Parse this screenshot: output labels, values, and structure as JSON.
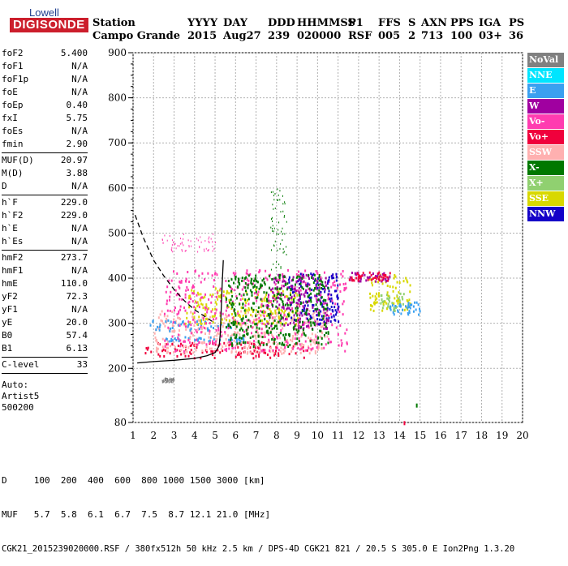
{
  "logo": {
    "line1": "Lowell",
    "line2": "DIGISONDE"
  },
  "header": {
    "labels": [
      "Station",
      "YYYY",
      "DAY",
      "DDD",
      "HHMMSS",
      "P1",
      "FFS",
      "S",
      "AXN",
      "PPS",
      "IGA",
      "PS"
    ],
    "values": [
      "Campo Grande",
      "2015",
      "Aug27",
      "239",
      "020000",
      "RSF",
      "005",
      "2",
      "713",
      "100",
      "03+",
      "36"
    ]
  },
  "params": {
    "group1": [
      {
        "name": "foF2",
        "value": "5.400"
      },
      {
        "name": "foF1",
        "value": "N/A"
      },
      {
        "name": "foF1p",
        "value": "N/A"
      },
      {
        "name": "foE",
        "value": "N/A"
      },
      {
        "name": "foEp",
        "value": "0.40"
      },
      {
        "name": "fxI",
        "value": "5.75"
      },
      {
        "name": "foEs",
        "value": "N/A"
      },
      {
        "name": "fmin",
        "value": "2.90"
      }
    ],
    "group2": [
      {
        "name": "MUF(D)",
        "value": "20.97"
      },
      {
        "name": "M(D)",
        "value": "3.88"
      },
      {
        "name": "D",
        "value": "N/A"
      }
    ],
    "group3": [
      {
        "name": "h`F",
        "value": "229.0"
      },
      {
        "name": "h`F2",
        "value": "229.0"
      },
      {
        "name": "h`E",
        "value": "N/A"
      },
      {
        "name": "h`Es",
        "value": "N/A"
      }
    ],
    "group4": [
      {
        "name": "hmF2",
        "value": "273.7"
      },
      {
        "name": "hmF1",
        "value": "N/A"
      },
      {
        "name": "hmE",
        "value": "110.0"
      },
      {
        "name": "yF2",
        "value": "72.3"
      },
      {
        "name": "yF1",
        "value": "N/A"
      },
      {
        "name": "yE",
        "value": "20.0"
      },
      {
        "name": "B0",
        "value": "57.4"
      },
      {
        "name": "B1",
        "value": "6.13"
      }
    ],
    "group5": [
      {
        "name": "C-level",
        "value": "33"
      }
    ],
    "auto": [
      "Auto:",
      "Artist5",
      "500200"
    ]
  },
  "legend": [
    {
      "label": "NoVal",
      "color": "#808080"
    },
    {
      "label": "NNE",
      "color": "#00e5ff"
    },
    {
      "label": "E",
      "color": "#3aa0f0"
    },
    {
      "label": "W",
      "color": "#a000a0"
    },
    {
      "label": "Vo-",
      "color": "#ff3cb0"
    },
    {
      "label": "Vo+",
      "color": "#f0003c"
    },
    {
      "label": "SSW",
      "color": "#ffb0b0"
    },
    {
      "label": "X-",
      "color": "#007800"
    },
    {
      "label": "X+",
      "color": "#90d070"
    },
    {
      "label": "SSE",
      "color": "#d8d800"
    },
    {
      "label": "NNW",
      "color": "#1400c8"
    }
  ],
  "footer": {
    "line1": "D     100  200  400  600  800 1000 1500 3000 [km]",
    "line2": "MUF   5.7  5.8  6.1  6.7  7.5  8.7 12.1 21.0 [MHz]",
    "line3": "CGK21_2015239020000.RSF / 380fx512h 50 kHz 2.5 km / DPS-4D CGK21 821 / 20.5 S 305.0 E Ion2Png 1.3.20"
  },
  "chart_data": {
    "type": "scatter",
    "title": "",
    "xlabel": "",
    "ylabel": "",
    "xlim": [
      1,
      20
    ],
    "ylim": [
      80,
      900
    ],
    "x_ticks": [
      1,
      2,
      3,
      4,
      5,
      6,
      7,
      8,
      9,
      10,
      11,
      12,
      13,
      14,
      15,
      16,
      17,
      18,
      19,
      20
    ],
    "y_ticks": [
      80,
      200,
      300,
      400,
      500,
      600,
      700,
      800,
      900
    ],
    "grid": true,
    "ionogram_regions": [
      {
        "direction": "Vo+",
        "x_range": [
          1.5,
          9.5
        ],
        "y_range": [
          225,
          260
        ]
      },
      {
        "direction": "SSW",
        "x_range": [
          2.0,
          10.5
        ],
        "y_range": [
          235,
          330
        ]
      },
      {
        "direction": "E",
        "x_range": [
          1.8,
          6.0
        ],
        "y_range": [
          285,
          310
        ]
      },
      {
        "direction": "E",
        "x_range": [
          2.5,
          6.5
        ],
        "y_range": [
          262,
          272
        ]
      },
      {
        "direction": "SSE",
        "x_range": [
          3.5,
          9.0
        ],
        "y_range": [
          300,
          380
        ]
      },
      {
        "direction": "Vo-",
        "x_range": [
          2.5,
          11.5
        ],
        "y_range": [
          240,
          420
        ]
      },
      {
        "direction": "NNW",
        "x_range": [
          8.5,
          11.0
        ],
        "y_range": [
          300,
          415
        ]
      },
      {
        "direction": "W",
        "x_range": [
          7.5,
          10.5
        ],
        "y_range": [
          290,
          410
        ]
      },
      {
        "direction": "X-",
        "x_range": [
          5.5,
          10.5
        ],
        "y_range": [
          250,
          410
        ]
      },
      {
        "direction": "X+",
        "x_range": [
          13.0,
          14.2
        ],
        "y_range": [
          330,
          370
        ]
      },
      {
        "direction": "SSE",
        "x_range": [
          12.5,
          14.5
        ],
        "y_range": [
          330,
          410
        ]
      },
      {
        "direction": "E",
        "x_range": [
          13.5,
          15.0
        ],
        "y_range": [
          320,
          350
        ]
      },
      {
        "direction": "W",
        "x_range": [
          11.5,
          13.5
        ],
        "y_range": [
          395,
          415
        ]
      },
      {
        "direction": "Vo+",
        "x_range": [
          11.5,
          13.5
        ],
        "y_range": [
          395,
          415
        ]
      }
    ],
    "profile_curve": {
      "x": [
        1.2,
        2.0,
        3.0,
        4.0,
        4.6,
        5.0,
        5.2,
        5.25,
        5.3,
        5.35,
        5.4
      ],
      "y": [
        212,
        215,
        218,
        222,
        228,
        235,
        250,
        275,
        330,
        390,
        440
      ]
    },
    "muf_curve": {
      "x": [
        1.1,
        1.5,
        2.0,
        2.5,
        3.0,
        3.5,
        4.0,
        4.5,
        5.0
      ],
      "y": [
        540,
        490,
        440,
        405,
        375,
        350,
        330,
        315,
        300
      ]
    },
    "sparse_traces": [
      {
        "direction": "Vo-",
        "x_range": [
          2.4,
          5.0
        ],
        "y_range": [
          460,
          500
        ]
      },
      {
        "direction": "X-",
        "x_range": [
          7.7,
          8.5
        ],
        "y_range": [
          420,
          610
        ]
      },
      {
        "direction": "NoVal",
        "x_range": [
          2.4,
          3.0
        ],
        "y_range": [
          170,
          180
        ]
      },
      {
        "direction": "X-",
        "x": [
          14.8
        ],
        "y": [
          122
        ]
      },
      {
        "direction": "Vo+",
        "x": [
          14.2
        ],
        "y": [
          83
        ]
      }
    ]
  }
}
